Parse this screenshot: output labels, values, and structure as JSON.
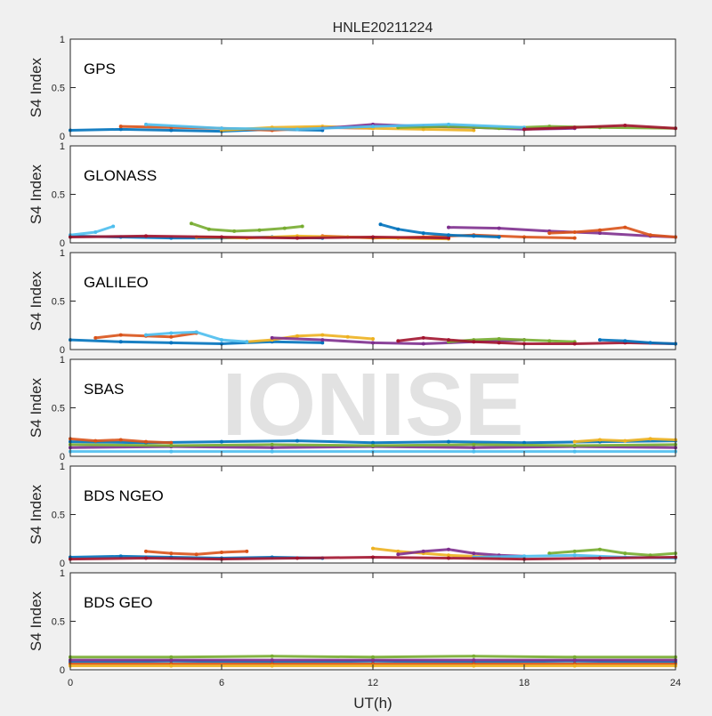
{
  "figure": {
    "title": "HNLE20211224",
    "xlabel": "UT(h)",
    "watermark": "IONISE",
    "background": "#f0f0f0",
    "palette": [
      "#0072bd",
      "#d95319",
      "#edb120",
      "#7e2f8e",
      "#77ac30",
      "#4dbeee",
      "#a2142f"
    ]
  },
  "chart_data": [
    {
      "type": "scatter",
      "panel_label": "GPS",
      "ylabel": "S4 Index",
      "xlim": [
        0,
        24
      ],
      "ylim": [
        0,
        1
      ],
      "x_ticks": [
        0,
        6,
        12,
        18,
        24
      ],
      "y_ticks": [
        0,
        0.5,
        1
      ],
      "y_tick_labels": [
        "0",
        "0.5",
        "1"
      ],
      "series": [
        {
          "x": [
            0,
            2,
            4,
            6,
            8,
            10
          ],
          "y": [
            0.06,
            0.07,
            0.06,
            0.05,
            0.07,
            0.06
          ]
        },
        {
          "x": [
            2,
            4,
            6,
            8,
            10,
            12
          ],
          "y": [
            0.1,
            0.09,
            0.08,
            0.06,
            0.09,
            0.08
          ]
        },
        {
          "x": [
            6,
            8,
            10,
            12,
            14,
            16
          ],
          "y": [
            0.06,
            0.09,
            0.1,
            0.08,
            0.07,
            0.06
          ]
        },
        {
          "x": [
            10,
            12,
            14,
            16,
            18,
            20
          ],
          "y": [
            0.08,
            0.12,
            0.1,
            0.09,
            0.07,
            0.08
          ]
        },
        {
          "x": [
            13,
            15,
            17,
            19,
            21,
            24
          ],
          "y": [
            0.09,
            0.1,
            0.08,
            0.1,
            0.09,
            0.08
          ]
        },
        {
          "x": [
            3,
            6,
            9,
            12,
            15,
            18
          ],
          "y": [
            0.12,
            0.08,
            0.07,
            0.1,
            0.12,
            0.09
          ]
        },
        {
          "x": [
            18,
            20,
            22,
            24
          ],
          "y": [
            0.07,
            0.09,
            0.11,
            0.08
          ]
        }
      ]
    },
    {
      "type": "scatter",
      "panel_label": "GLONASS",
      "ylabel": "S4 Index",
      "xlim": [
        0,
        24
      ],
      "ylim": [
        0,
        1
      ],
      "x_ticks": [
        0,
        6,
        12,
        18,
        24
      ],
      "y_ticks": [
        0,
        0.5,
        1
      ],
      "y_tick_labels": [
        "0",
        "0.5",
        "1"
      ],
      "series": [
        {
          "x": [
            0,
            2,
            4,
            6,
            8,
            10
          ],
          "y": [
            0.07,
            0.06,
            0.05,
            0.05,
            0.06,
            0.05
          ]
        },
        {
          "x": [
            10,
            12,
            14,
            16,
            18,
            20
          ],
          "y": [
            0.07,
            0.05,
            0.06,
            0.08,
            0.06,
            0.05
          ]
        },
        {
          "x": [
            5,
            7,
            9,
            11,
            13,
            15
          ],
          "y": [
            0.06,
            0.05,
            0.07,
            0.06,
            0.05,
            0.04
          ]
        },
        {
          "x": [
            15,
            17,
            19,
            21,
            23,
            24
          ],
          "y": [
            0.16,
            0.15,
            0.12,
            0.1,
            0.07,
            0.06
          ]
        },
        {
          "x": [
            4.8,
            5.5,
            6.5,
            7.5,
            8.5,
            9.2
          ],
          "y": [
            0.2,
            0.14,
            0.12,
            0.13,
            0.15,
            0.17
          ]
        },
        {
          "x": [
            0,
            1,
            1.7
          ],
          "y": [
            0.08,
            0.11,
            0.17
          ]
        },
        {
          "x": [
            0,
            3,
            6,
            9,
            12,
            15
          ],
          "y": [
            0.06,
            0.07,
            0.06,
            0.05,
            0.06,
            0.05
          ]
        },
        {
          "x": [
            12.3,
            13,
            14,
            15,
            16,
            17
          ],
          "y": [
            0.19,
            0.14,
            0.1,
            0.08,
            0.07,
            0.06
          ]
        },
        {
          "x": [
            19,
            20,
            21,
            22,
            23,
            24
          ],
          "y": [
            0.1,
            0.11,
            0.13,
            0.16,
            0.08,
            0.06
          ]
        }
      ]
    },
    {
      "type": "scatter",
      "panel_label": "GALILEO",
      "ylabel": "S4 Index",
      "xlim": [
        0,
        24
      ],
      "ylim": [
        0,
        1
      ],
      "x_ticks": [
        0,
        6,
        12,
        18,
        24
      ],
      "y_ticks": [
        0,
        0.5,
        1
      ],
      "y_tick_labels": [
        "0",
        "0.5",
        "1"
      ],
      "series": [
        {
          "x": [
            0,
            2,
            4,
            6,
            8,
            10
          ],
          "y": [
            0.1,
            0.08,
            0.07,
            0.06,
            0.08,
            0.07
          ]
        },
        {
          "x": [
            1,
            2,
            3,
            4,
            5
          ],
          "y": [
            0.12,
            0.15,
            0.14,
            0.13,
            0.17
          ]
        },
        {
          "x": [
            7,
            8,
            9,
            10,
            11,
            12
          ],
          "y": [
            0.08,
            0.1,
            0.14,
            0.15,
            0.13,
            0.11
          ]
        },
        {
          "x": [
            8,
            10,
            12,
            14,
            16,
            18
          ],
          "y": [
            0.12,
            0.1,
            0.07,
            0.06,
            0.08,
            0.1
          ]
        },
        {
          "x": [
            15,
            16,
            17,
            18,
            19,
            20
          ],
          "y": [
            0.08,
            0.1,
            0.11,
            0.1,
            0.09,
            0.08
          ]
        },
        {
          "x": [
            3,
            4,
            5,
            6,
            7
          ],
          "y": [
            0.15,
            0.17,
            0.18,
            0.1,
            0.08
          ]
        },
        {
          "x": [
            13,
            14,
            15,
            16,
            17,
            18,
            20,
            22,
            24
          ],
          "y": [
            0.09,
            0.12,
            0.1,
            0.08,
            0.07,
            0.06,
            0.06,
            0.07,
            0.06
          ]
        },
        {
          "x": [
            21,
            22,
            23,
            24
          ],
          "y": [
            0.1,
            0.09,
            0.07,
            0.06
          ]
        }
      ]
    },
    {
      "type": "scatter",
      "panel_label": "SBAS",
      "ylabel": "S4 Index",
      "xlim": [
        0,
        24
      ],
      "ylim": [
        0,
        1
      ],
      "x_ticks": [
        0,
        6,
        12,
        18,
        24
      ],
      "y_ticks": [
        0,
        0.5,
        1
      ],
      "y_tick_labels": [
        "0",
        "0.5",
        "1"
      ],
      "series": [
        {
          "x": [
            0,
            3,
            6,
            9,
            12,
            15,
            18,
            21,
            24
          ],
          "y": [
            0.15,
            0.14,
            0.15,
            0.16,
            0.14,
            0.15,
            0.14,
            0.15,
            0.16
          ]
        },
        {
          "x": [
            0,
            1,
            2,
            3,
            4
          ],
          "y": [
            0.18,
            0.16,
            0.17,
            0.15,
            0.14
          ]
        },
        {
          "x": [
            20,
            21,
            22,
            23,
            24
          ],
          "y": [
            0.15,
            0.17,
            0.16,
            0.18,
            0.17
          ]
        },
        {
          "x": [
            0,
            4,
            8,
            12,
            16,
            20,
            24
          ],
          "y": [
            0.09,
            0.1,
            0.09,
            0.1,
            0.09,
            0.1,
            0.09
          ]
        },
        {
          "x": [
            0,
            4,
            8,
            12,
            16,
            20,
            24
          ],
          "y": [
            0.12,
            0.11,
            0.12,
            0.11,
            0.12,
            0.11,
            0.12
          ]
        },
        {
          "x": [
            0,
            4,
            8,
            12,
            16,
            20,
            24
          ],
          "y": [
            0.05,
            0.05,
            0.05,
            0.05,
            0.05,
            0.05,
            0.05
          ]
        }
      ]
    },
    {
      "type": "scatter",
      "panel_label": "BDS NGEO",
      "ylabel": "S4 Index",
      "xlim": [
        0,
        24
      ],
      "ylim": [
        0,
        1
      ],
      "x_ticks": [
        0,
        6,
        12,
        18,
        24
      ],
      "y_ticks": [
        0,
        0.5,
        1
      ],
      "y_tick_labels": [
        "0",
        "0.5",
        "1"
      ],
      "series": [
        {
          "x": [
            0,
            2,
            4,
            6,
            8,
            10
          ],
          "y": [
            0.06,
            0.07,
            0.06,
            0.05,
            0.06,
            0.05
          ]
        },
        {
          "x": [
            3,
            4,
            5,
            6,
            7
          ],
          "y": [
            0.12,
            0.1,
            0.09,
            0.11,
            0.12
          ]
        },
        {
          "x": [
            12,
            13,
            14,
            15,
            16,
            17
          ],
          "y": [
            0.15,
            0.12,
            0.1,
            0.08,
            0.07,
            0.06
          ]
        },
        {
          "x": [
            13,
            14,
            15,
            16,
            17,
            18
          ],
          "y": [
            0.09,
            0.12,
            0.14,
            0.1,
            0.08,
            0.07
          ]
        },
        {
          "x": [
            19,
            20,
            21,
            22,
            23,
            24
          ],
          "y": [
            0.1,
            0.12,
            0.14,
            0.1,
            0.08,
            0.1
          ]
        },
        {
          "x": [
            16,
            18,
            20,
            22,
            24
          ],
          "y": [
            0.06,
            0.07,
            0.08,
            0.06,
            0.05
          ]
        },
        {
          "x": [
            0,
            3,
            6,
            9,
            12,
            15,
            18,
            21,
            24
          ],
          "y": [
            0.04,
            0.05,
            0.04,
            0.05,
            0.06,
            0.05,
            0.04,
            0.05,
            0.06
          ]
        }
      ]
    },
    {
      "type": "scatter",
      "panel_label": "BDS GEO",
      "ylabel": "S4 Index",
      "xlim": [
        0,
        24
      ],
      "ylim": [
        0,
        1
      ],
      "x_ticks": [
        0,
        6,
        12,
        18,
        24
      ],
      "y_ticks": [
        0,
        0.5,
        1
      ],
      "y_tick_labels": [
        "0",
        "0.5",
        "1"
      ],
      "series": [
        {
          "x": [
            0,
            4,
            8,
            12,
            16,
            20,
            24
          ],
          "y": [
            0.08,
            0.09,
            0.08,
            0.09,
            0.08,
            0.09,
            0.08
          ]
        },
        {
          "x": [
            0,
            4,
            8,
            12,
            16,
            20,
            24
          ],
          "y": [
            0.06,
            0.06,
            0.06,
            0.06,
            0.06,
            0.06,
            0.06
          ]
        },
        {
          "x": [
            0,
            4,
            8,
            12,
            16,
            20,
            24
          ],
          "y": [
            0.04,
            0.04,
            0.04,
            0.04,
            0.04,
            0.04,
            0.04
          ]
        },
        {
          "x": [
            0,
            4,
            8,
            12,
            16,
            20,
            24
          ],
          "y": [
            0.1,
            0.1,
            0.1,
            0.1,
            0.1,
            0.1,
            0.1
          ]
        },
        {
          "x": [
            0,
            4,
            8,
            12,
            16,
            20,
            24
          ],
          "y": [
            0.13,
            0.13,
            0.14,
            0.13,
            0.14,
            0.13,
            0.13
          ]
        }
      ]
    }
  ]
}
